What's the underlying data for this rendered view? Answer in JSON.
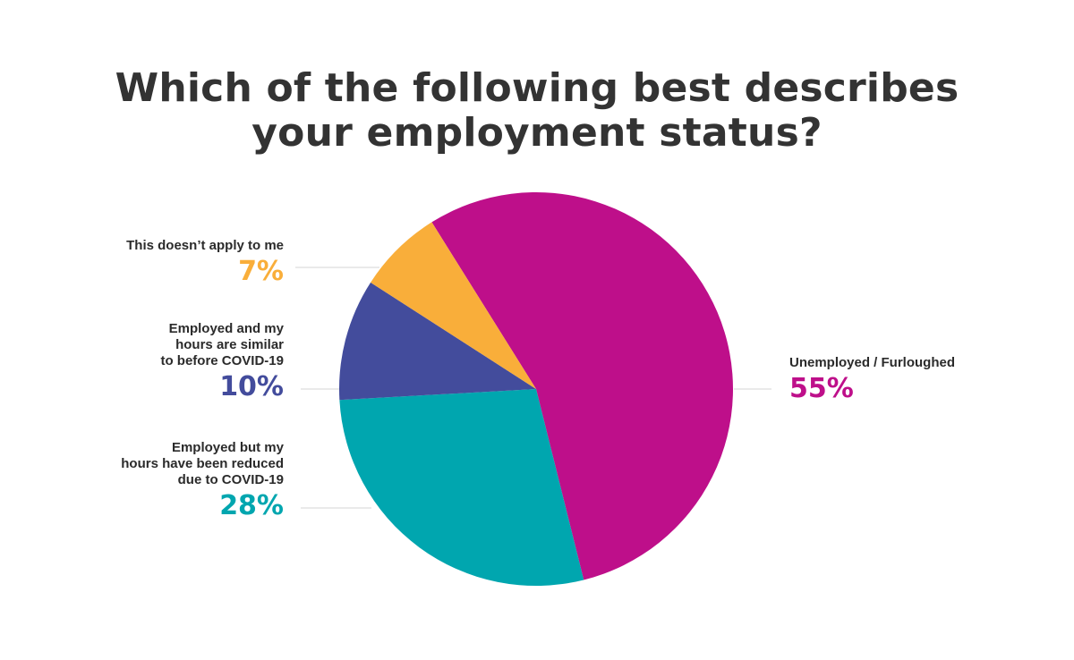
{
  "chart_data": {
    "type": "pie",
    "title": [
      "Which of the following best describes",
      "your employment status?"
    ],
    "slices": [
      {
        "label": "Unemployed / Furloughed",
        "value": 55,
        "display": "55%",
        "color": "#BE0F8A"
      },
      {
        "label": "Employed but my\nhours have been reduced\ndue to COVID-19",
        "value": 28,
        "display": "28%",
        "color": "#00A6AF"
      },
      {
        "label": "Employed and my\nhours are similar\nto before COVID-19",
        "value": 10,
        "display": "10%",
        "color": "#434C9C"
      },
      {
        "label": "This doesn’t apply to me",
        "value": 7,
        "display": "7%",
        "color": "#F9AE3A"
      }
    ]
  }
}
